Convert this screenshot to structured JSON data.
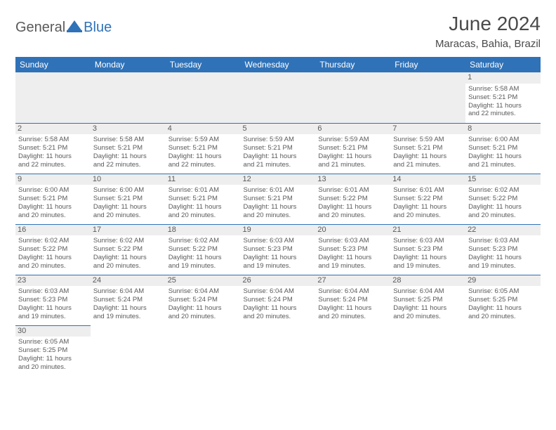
{
  "logo": {
    "part1": "General",
    "part2": "Blue"
  },
  "title": "June 2024",
  "location": "Maracas, Bahia, Brazil",
  "colors": {
    "header_bg": "#2f72b8",
    "header_text": "#ffffff",
    "daybar_bg": "#eeeeee",
    "border": "#2f72b8",
    "text": "#5a5a5a",
    "logo_gray": "#5a5a5a",
    "logo_blue": "#2f72b8"
  },
  "weekdays": [
    "Sunday",
    "Monday",
    "Tuesday",
    "Wednesday",
    "Thursday",
    "Friday",
    "Saturday"
  ],
  "weeks": [
    [
      null,
      null,
      null,
      null,
      null,
      null,
      {
        "n": "1",
        "sr": "Sunrise: 5:58 AM",
        "ss": "Sunset: 5:21 PM",
        "d1": "Daylight: 11 hours",
        "d2": "and 22 minutes."
      }
    ],
    [
      {
        "n": "2",
        "sr": "Sunrise: 5:58 AM",
        "ss": "Sunset: 5:21 PM",
        "d1": "Daylight: 11 hours",
        "d2": "and 22 minutes."
      },
      {
        "n": "3",
        "sr": "Sunrise: 5:58 AM",
        "ss": "Sunset: 5:21 PM",
        "d1": "Daylight: 11 hours",
        "d2": "and 22 minutes."
      },
      {
        "n": "4",
        "sr": "Sunrise: 5:59 AM",
        "ss": "Sunset: 5:21 PM",
        "d1": "Daylight: 11 hours",
        "d2": "and 22 minutes."
      },
      {
        "n": "5",
        "sr": "Sunrise: 5:59 AM",
        "ss": "Sunset: 5:21 PM",
        "d1": "Daylight: 11 hours",
        "d2": "and 21 minutes."
      },
      {
        "n": "6",
        "sr": "Sunrise: 5:59 AM",
        "ss": "Sunset: 5:21 PM",
        "d1": "Daylight: 11 hours",
        "d2": "and 21 minutes."
      },
      {
        "n": "7",
        "sr": "Sunrise: 5:59 AM",
        "ss": "Sunset: 5:21 PM",
        "d1": "Daylight: 11 hours",
        "d2": "and 21 minutes."
      },
      {
        "n": "8",
        "sr": "Sunrise: 6:00 AM",
        "ss": "Sunset: 5:21 PM",
        "d1": "Daylight: 11 hours",
        "d2": "and 21 minutes."
      }
    ],
    [
      {
        "n": "9",
        "sr": "Sunrise: 6:00 AM",
        "ss": "Sunset: 5:21 PM",
        "d1": "Daylight: 11 hours",
        "d2": "and 20 minutes."
      },
      {
        "n": "10",
        "sr": "Sunrise: 6:00 AM",
        "ss": "Sunset: 5:21 PM",
        "d1": "Daylight: 11 hours",
        "d2": "and 20 minutes."
      },
      {
        "n": "11",
        "sr": "Sunrise: 6:01 AM",
        "ss": "Sunset: 5:21 PM",
        "d1": "Daylight: 11 hours",
        "d2": "and 20 minutes."
      },
      {
        "n": "12",
        "sr": "Sunrise: 6:01 AM",
        "ss": "Sunset: 5:21 PM",
        "d1": "Daylight: 11 hours",
        "d2": "and 20 minutes."
      },
      {
        "n": "13",
        "sr": "Sunrise: 6:01 AM",
        "ss": "Sunset: 5:22 PM",
        "d1": "Daylight: 11 hours",
        "d2": "and 20 minutes."
      },
      {
        "n": "14",
        "sr": "Sunrise: 6:01 AM",
        "ss": "Sunset: 5:22 PM",
        "d1": "Daylight: 11 hours",
        "d2": "and 20 minutes."
      },
      {
        "n": "15",
        "sr": "Sunrise: 6:02 AM",
        "ss": "Sunset: 5:22 PM",
        "d1": "Daylight: 11 hours",
        "d2": "and 20 minutes."
      }
    ],
    [
      {
        "n": "16",
        "sr": "Sunrise: 6:02 AM",
        "ss": "Sunset: 5:22 PM",
        "d1": "Daylight: 11 hours",
        "d2": "and 20 minutes."
      },
      {
        "n": "17",
        "sr": "Sunrise: 6:02 AM",
        "ss": "Sunset: 5:22 PM",
        "d1": "Daylight: 11 hours",
        "d2": "and 20 minutes."
      },
      {
        "n": "18",
        "sr": "Sunrise: 6:02 AM",
        "ss": "Sunset: 5:22 PM",
        "d1": "Daylight: 11 hours",
        "d2": "and 19 minutes."
      },
      {
        "n": "19",
        "sr": "Sunrise: 6:03 AM",
        "ss": "Sunset: 5:23 PM",
        "d1": "Daylight: 11 hours",
        "d2": "and 19 minutes."
      },
      {
        "n": "20",
        "sr": "Sunrise: 6:03 AM",
        "ss": "Sunset: 5:23 PM",
        "d1": "Daylight: 11 hours",
        "d2": "and 19 minutes."
      },
      {
        "n": "21",
        "sr": "Sunrise: 6:03 AM",
        "ss": "Sunset: 5:23 PM",
        "d1": "Daylight: 11 hours",
        "d2": "and 19 minutes."
      },
      {
        "n": "22",
        "sr": "Sunrise: 6:03 AM",
        "ss": "Sunset: 5:23 PM",
        "d1": "Daylight: 11 hours",
        "d2": "and 19 minutes."
      }
    ],
    [
      {
        "n": "23",
        "sr": "Sunrise: 6:03 AM",
        "ss": "Sunset: 5:23 PM",
        "d1": "Daylight: 11 hours",
        "d2": "and 19 minutes."
      },
      {
        "n": "24",
        "sr": "Sunrise: 6:04 AM",
        "ss": "Sunset: 5:24 PM",
        "d1": "Daylight: 11 hours",
        "d2": "and 19 minutes."
      },
      {
        "n": "25",
        "sr": "Sunrise: 6:04 AM",
        "ss": "Sunset: 5:24 PM",
        "d1": "Daylight: 11 hours",
        "d2": "and 20 minutes."
      },
      {
        "n": "26",
        "sr": "Sunrise: 6:04 AM",
        "ss": "Sunset: 5:24 PM",
        "d1": "Daylight: 11 hours",
        "d2": "and 20 minutes."
      },
      {
        "n": "27",
        "sr": "Sunrise: 6:04 AM",
        "ss": "Sunset: 5:24 PM",
        "d1": "Daylight: 11 hours",
        "d2": "and 20 minutes."
      },
      {
        "n": "28",
        "sr": "Sunrise: 6:04 AM",
        "ss": "Sunset: 5:25 PM",
        "d1": "Daylight: 11 hours",
        "d2": "and 20 minutes."
      },
      {
        "n": "29",
        "sr": "Sunrise: 6:05 AM",
        "ss": "Sunset: 5:25 PM",
        "d1": "Daylight: 11 hours",
        "d2": "and 20 minutes."
      }
    ],
    [
      {
        "n": "30",
        "sr": "Sunrise: 6:05 AM",
        "ss": "Sunset: 5:25 PM",
        "d1": "Daylight: 11 hours",
        "d2": "and 20 minutes."
      },
      null,
      null,
      null,
      null,
      null,
      null
    ]
  ]
}
